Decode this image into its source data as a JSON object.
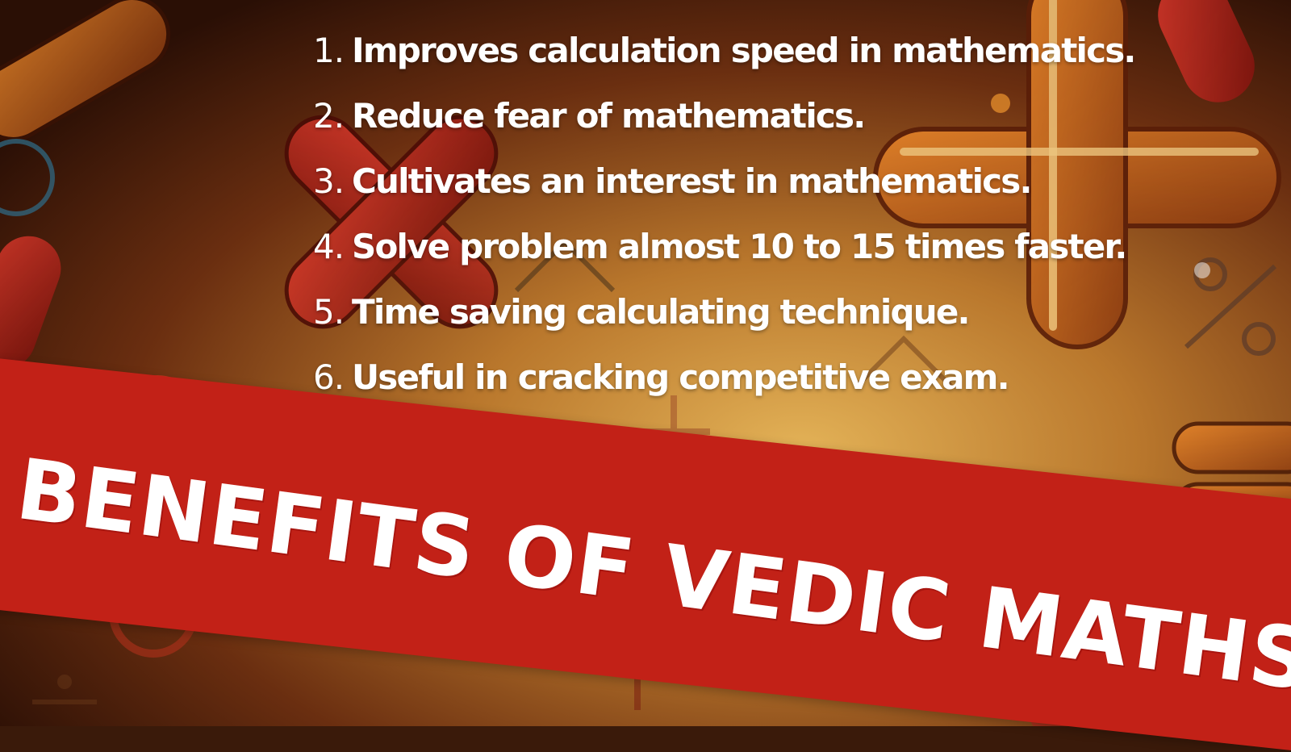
{
  "benefits": [
    {
      "num": "1.",
      "text": "Improves calculation speed in mathematics."
    },
    {
      "num": "2.",
      "text": "Reduce fear of mathematics."
    },
    {
      "num": "3.",
      "text": "Cultivates an interest in mathematics."
    },
    {
      "num": "4.",
      "text": "Solve problem almost 10 to 15 times faster."
    },
    {
      "num": "5.",
      "text": "Time saving calculating technique."
    },
    {
      "num": "6.",
      "text": "Useful in cracking competitive exam."
    }
  ],
  "banner": {
    "title": "BENEFITS OF VEDIC MATHS",
    "color": "#c22117"
  },
  "background": {
    "colors": {
      "dark": "#2a0f05",
      "mid": "#7a3a12",
      "light": "#d99a3a",
      "neon_red": "#b0231a",
      "neon_orange": "#e07a1e"
    },
    "icons": [
      "plus-icon",
      "multiply-icon",
      "minus-icon",
      "equals-icon",
      "percent-icon",
      "divide-icon",
      "circle-icon"
    ]
  }
}
